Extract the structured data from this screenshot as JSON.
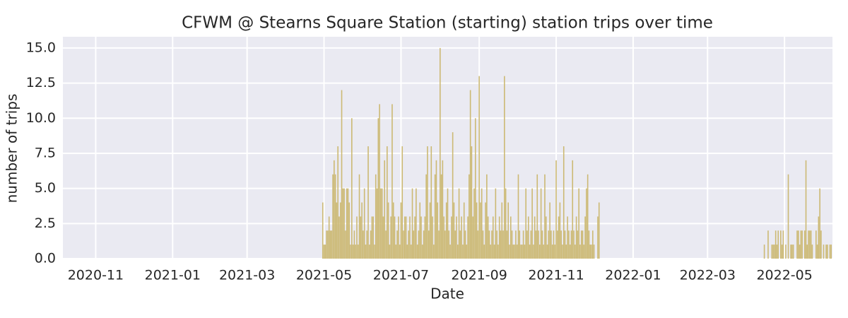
{
  "chart_data": {
    "type": "bar",
    "title": "CFWM @ Stearns Square Station (starting) station trips over time",
    "xlabel": "Date",
    "ylabel": "number of trips",
    "color": "#ccb974",
    "grid": true,
    "xlim": [
      "2020-10-06",
      "2022-06-08"
    ],
    "xticks": [
      {
        "value": "2020-11-01",
        "label": "2020-11"
      },
      {
        "value": "2021-01-01",
        "label": "2021-01"
      },
      {
        "value": "2021-03-01",
        "label": "2021-03"
      },
      {
        "value": "2021-05-01",
        "label": "2021-05"
      },
      {
        "value": "2021-07-01",
        "label": "2021-07"
      },
      {
        "value": "2021-09-01",
        "label": "2021-09"
      },
      {
        "value": "2021-11-01",
        "label": "2021-11"
      },
      {
        "value": "2022-01-01",
        "label": "2022-01"
      },
      {
        "value": "2022-03-01",
        "label": "2022-03"
      },
      {
        "value": "2022-05-01",
        "label": "2022-05"
      }
    ],
    "ylim": [
      0,
      15.8
    ],
    "yticks": [
      {
        "value": 0,
        "label": "0.0"
      },
      2.5,
      {
        "value": 5,
        "label": "5.0"
      },
      7.5,
      {
        "value": 10,
        "label": "10.0"
      },
      12.5,
      {
        "value": 15,
        "label": "15.0"
      }
    ],
    "x": [
      "2021-04-30",
      "2021-05-01",
      "2021-05-02",
      "2021-05-03",
      "2021-05-04",
      "2021-05-05",
      "2021-05-06",
      "2021-05-07",
      "2021-05-08",
      "2021-05-09",
      "2021-05-10",
      "2021-05-11",
      "2021-05-12",
      "2021-05-13",
      "2021-05-14",
      "2021-05-15",
      "2021-05-16",
      "2021-05-17",
      "2021-05-18",
      "2021-05-19",
      "2021-05-20",
      "2021-05-21",
      "2021-05-22",
      "2021-05-23",
      "2021-05-24",
      "2021-05-25",
      "2021-05-26",
      "2021-05-27",
      "2021-05-28",
      "2021-05-29",
      "2021-05-30",
      "2021-05-31",
      "2021-06-01",
      "2021-06-02",
      "2021-06-03",
      "2021-06-04",
      "2021-06-05",
      "2021-06-06",
      "2021-06-07",
      "2021-06-08",
      "2021-06-09",
      "2021-06-10",
      "2021-06-11",
      "2021-06-12",
      "2021-06-13",
      "2021-06-14",
      "2021-06-15",
      "2021-06-16",
      "2021-06-17",
      "2021-06-18",
      "2021-06-19",
      "2021-06-20",
      "2021-06-21",
      "2021-06-22",
      "2021-06-23",
      "2021-06-24",
      "2021-06-25",
      "2021-06-26",
      "2021-06-27",
      "2021-06-28",
      "2021-06-29",
      "2021-06-30",
      "2021-07-01",
      "2021-07-02",
      "2021-07-03",
      "2021-07-04",
      "2021-07-05",
      "2021-07-06",
      "2021-07-07",
      "2021-07-08",
      "2021-07-09",
      "2021-07-10",
      "2021-07-11",
      "2021-07-12",
      "2021-07-13",
      "2021-07-14",
      "2021-07-15",
      "2021-07-16",
      "2021-07-17",
      "2021-07-18",
      "2021-07-19",
      "2021-07-20",
      "2021-07-21",
      "2021-07-22",
      "2021-07-23",
      "2021-07-24",
      "2021-07-25",
      "2021-07-26",
      "2021-07-27",
      "2021-07-28",
      "2021-07-29",
      "2021-07-30",
      "2021-07-31",
      "2021-08-01",
      "2021-08-02",
      "2021-08-03",
      "2021-08-04",
      "2021-08-05",
      "2021-08-06",
      "2021-08-07",
      "2021-08-08",
      "2021-08-09",
      "2021-08-10",
      "2021-08-11",
      "2021-08-12",
      "2021-08-13",
      "2021-08-14",
      "2021-08-15",
      "2021-08-16",
      "2021-08-17",
      "2021-08-18",
      "2021-08-19",
      "2021-08-20",
      "2021-08-21",
      "2021-08-22",
      "2021-08-23",
      "2021-08-24",
      "2021-08-25",
      "2021-08-26",
      "2021-08-27",
      "2021-08-28",
      "2021-08-29",
      "2021-08-30",
      "2021-08-31",
      "2021-09-01",
      "2021-09-02",
      "2021-09-03",
      "2021-09-04",
      "2021-09-05",
      "2021-09-06",
      "2021-09-07",
      "2021-09-08",
      "2021-09-09",
      "2021-09-10",
      "2021-09-11",
      "2021-09-12",
      "2021-09-13",
      "2021-09-14",
      "2021-09-15",
      "2021-09-16",
      "2021-09-17",
      "2021-09-18",
      "2021-09-19",
      "2021-09-20",
      "2021-09-21",
      "2021-09-22",
      "2021-09-23",
      "2021-09-24",
      "2021-09-25",
      "2021-09-26",
      "2021-09-27",
      "2021-09-28",
      "2021-09-29",
      "2021-09-30",
      "2021-10-01",
      "2021-10-02",
      "2021-10-03",
      "2021-10-04",
      "2021-10-05",
      "2021-10-06",
      "2021-10-07",
      "2021-10-08",
      "2021-10-09",
      "2021-10-10",
      "2021-10-11",
      "2021-10-12",
      "2021-10-13",
      "2021-10-14",
      "2021-10-15",
      "2021-10-16",
      "2021-10-17",
      "2021-10-18",
      "2021-10-19",
      "2021-10-20",
      "2021-10-21",
      "2021-10-22",
      "2021-10-23",
      "2021-10-24",
      "2021-10-25",
      "2021-10-26",
      "2021-10-27",
      "2021-10-28",
      "2021-10-29",
      "2021-10-30",
      "2021-10-31",
      "2021-11-01",
      "2021-11-02",
      "2021-11-03",
      "2021-11-04",
      "2021-11-05",
      "2021-11-06",
      "2021-11-07",
      "2021-11-08",
      "2021-11-09",
      "2021-11-10",
      "2021-11-11",
      "2021-11-12",
      "2021-11-13",
      "2021-11-14",
      "2021-11-15",
      "2021-11-16",
      "2021-11-17",
      "2021-11-18",
      "2021-11-19",
      "2021-11-20",
      "2021-11-21",
      "2021-11-22",
      "2021-11-23",
      "2021-11-24",
      "2021-11-25",
      "2021-11-26",
      "2021-11-27",
      "2021-11-28",
      "2021-11-29",
      "2021-11-30",
      "2021-12-01",
      "2021-12-02",
      "2021-12-03",
      "2021-12-04",
      "2021-12-05",
      "2022-04-15",
      "2022-04-16",
      "2022-04-17",
      "2022-04-18",
      "2022-04-19",
      "2022-04-20",
      "2022-04-21",
      "2022-04-22",
      "2022-04-23",
      "2022-04-24",
      "2022-04-25",
      "2022-04-26",
      "2022-04-27",
      "2022-04-28",
      "2022-04-29",
      "2022-04-30",
      "2022-05-01",
      "2022-05-02",
      "2022-05-03",
      "2022-05-04",
      "2022-05-05",
      "2022-05-06",
      "2022-05-07",
      "2022-05-08",
      "2022-05-09",
      "2022-05-10",
      "2022-05-11",
      "2022-05-12",
      "2022-05-13",
      "2022-05-14",
      "2022-05-15",
      "2022-05-16",
      "2022-05-17",
      "2022-05-18",
      "2022-05-19",
      "2022-05-20",
      "2022-05-21",
      "2022-05-22",
      "2022-05-23",
      "2022-05-24",
      "2022-05-25",
      "2022-05-26",
      "2022-05-27",
      "2022-05-28",
      "2022-05-29",
      "2022-05-30",
      "2022-05-31",
      "2022-06-01",
      "2022-06-02",
      "2022-06-03",
      "2022-06-04",
      "2022-06-05",
      "2022-06-06",
      "2022-06-07"
    ],
    "values": [
      4,
      1,
      1,
      2,
      2,
      3,
      2,
      2,
      6,
      7,
      6,
      4,
      8,
      3,
      4,
      12,
      5,
      5,
      2,
      5,
      5,
      4,
      1,
      10,
      1,
      2,
      1,
      3,
      1,
      6,
      3,
      4,
      2,
      5,
      1,
      2,
      8,
      1,
      2,
      3,
      3,
      1,
      6,
      5,
      10,
      11,
      5,
      5,
      3,
      7,
      2,
      8,
      4,
      1,
      3,
      11,
      4,
      3,
      1,
      2,
      3,
      1,
      4,
      8,
      2,
      3,
      3,
      1,
      2,
      3,
      1,
      5,
      2,
      3,
      5,
      1,
      2,
      4,
      3,
      1,
      2,
      3,
      6,
      8,
      2,
      4,
      8,
      3,
      1,
      6,
      7,
      4,
      2,
      15,
      6,
      7,
      3,
      2,
      4,
      5,
      2,
      1,
      3,
      9,
      4,
      2,
      3,
      1,
      5,
      2,
      3,
      1,
      4,
      2,
      1,
      3,
      6,
      12,
      8,
      3,
      5,
      10,
      4,
      2,
      13,
      4,
      5,
      2,
      1,
      4,
      6,
      3,
      2,
      1,
      2,
      3,
      1,
      5,
      2,
      1,
      3,
      2,
      4,
      2,
      13,
      5,
      2,
      4,
      1,
      3,
      2,
      1,
      1,
      2,
      1,
      6,
      2,
      1,
      1,
      2,
      1,
      5,
      2,
      3,
      1,
      2,
      5,
      1,
      3,
      2,
      6,
      2,
      1,
      5,
      2,
      1,
      6,
      3,
      1,
      2,
      4,
      2,
      1,
      2,
      1,
      7,
      2,
      3,
      4,
      2,
      1,
      8,
      2,
      1,
      3,
      2,
      1,
      2,
      7,
      2,
      1,
      3,
      2,
      5,
      1,
      2,
      2,
      1,
      3,
      5,
      6,
      2,
      1,
      1,
      2,
      1,
      0,
      0,
      3,
      4,
      1,
      0,
      0,
      2,
      0,
      0,
      1,
      1,
      1,
      2,
      1,
      2,
      0,
      2,
      1,
      2,
      0,
      1,
      0,
      6,
      0,
      1,
      1,
      1,
      0,
      0,
      2,
      2,
      1,
      2,
      2,
      0,
      2,
      7,
      1,
      2,
      2,
      2,
      1,
      0,
      0,
      2,
      1,
      3,
      5,
      2,
      0,
      1,
      0,
      1,
      1,
      0,
      1,
      1
    ]
  }
}
